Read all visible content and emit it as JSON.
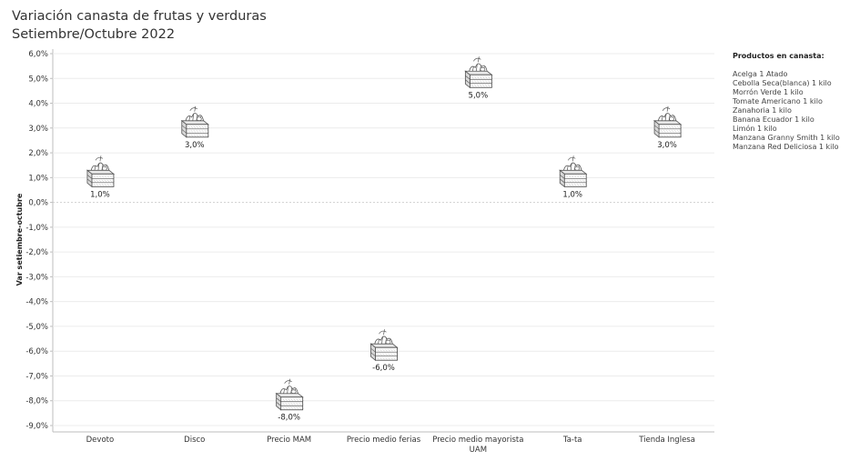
{
  "title": "Variación canasta de frutas y verduras",
  "subtitle": "Setiembre/Octubre 2022",
  "legend": {
    "title": "Productos en canasta:",
    "items": [
      "Acelga  1 Atado",
      "Cebolla Seca(blanca)  1 kilo",
      "Morrón Verde  1 kilo",
      "Tomate Americano 1 kilo",
      "Zanahoria 1 kilo",
      "Banana Ecuador  1 kilo",
      "Limón   1 kilo",
      "Manzana Granny Smith  1 kilo",
      "Manzana Red Deliciosa 1 kilo"
    ]
  },
  "chart_data": {
    "type": "scatter",
    "marker": "crate-of-vegetables-icon",
    "ylabel": "Var setiembre-octubre",
    "xlabel": "",
    "categories": [
      "Devoto",
      "Disco",
      "Precio MAM",
      "Precio medio ferias",
      "Precio medio mayorista UAM",
      "Ta-ta",
      "Tienda Inglesa"
    ],
    "category_labels": [
      [
        "Devoto"
      ],
      [
        "Disco"
      ],
      [
        "Precio MAM"
      ],
      [
        "Precio medio ferias"
      ],
      [
        "Precio medio mayorista",
        "UAM"
      ],
      [
        "Ta-ta"
      ],
      [
        "Tienda Inglesa"
      ]
    ],
    "values": [
      1.0,
      3.0,
      -8.0,
      -6.0,
      5.0,
      1.0,
      3.0
    ],
    "value_labels": [
      "1,0%",
      "3,0%",
      "-8,0%",
      "-6,0%",
      "5,0%",
      "1,0%",
      "3,0%"
    ],
    "yticks": [
      6,
      5,
      4,
      3,
      2,
      1,
      0,
      -1,
      -2,
      -3,
      -4,
      -5,
      -6,
      -7,
      -8,
      -9
    ],
    "ytick_labels": [
      "6,0%",
      "5,0%",
      "4,0%",
      "3,0%",
      "2,0%",
      "1,0%",
      "0,0%",
      "-1,0%",
      "-2,0%",
      "-3,0%",
      "-4,0%",
      "-5,0%",
      "-6,0%",
      "-7,0%",
      "-8,0%",
      "-9,0%"
    ],
    "ylim": [
      -9.2,
      6.2
    ],
    "grid": true,
    "colors": {
      "grid": "#ececec",
      "zero_line": "#d0d0d0",
      "axis": "#bdbdbd",
      "icon": "#555555"
    }
  }
}
